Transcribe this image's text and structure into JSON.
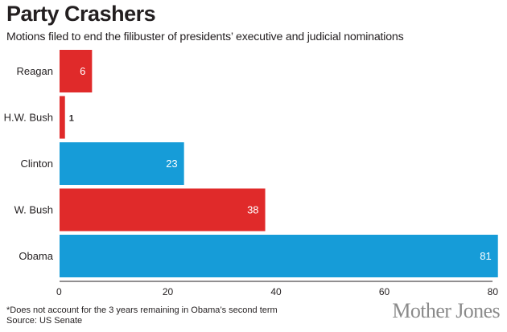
{
  "chart_data": {
    "type": "bar",
    "orientation": "horizontal",
    "title": "Party Crashers",
    "subtitle": "Motions filed to end the filibuster of presidents’ executive and judicial nominations",
    "categories": [
      "Reagan",
      "H.W. Bush",
      "Clinton",
      "W. Bush",
      "Obama"
    ],
    "values": [
      6,
      1,
      23,
      38,
      81
    ],
    "party": [
      "Republican",
      "Republican",
      "Democrat",
      "Republican",
      "Democrat"
    ],
    "value_labels": [
      "6",
      "1",
      "23",
      "38",
      "81"
    ],
    "xlabel": "",
    "ylabel": "",
    "xlim": [
      0,
      80
    ],
    "xticks": [
      0,
      20,
      40,
      60,
      80
    ],
    "xtick_labels": [
      "0",
      "20",
      "40",
      "60",
      "80"
    ],
    "grid": false,
    "legend": "none",
    "colors": {
      "Republican": "#e02a2a",
      "Democrat": "#169cd8"
    }
  },
  "footnote": {
    "note": "*Does not account for the 3 years remaining in Obama’s second term",
    "source": "Source: US Senate"
  },
  "brand": "Mother Jones"
}
